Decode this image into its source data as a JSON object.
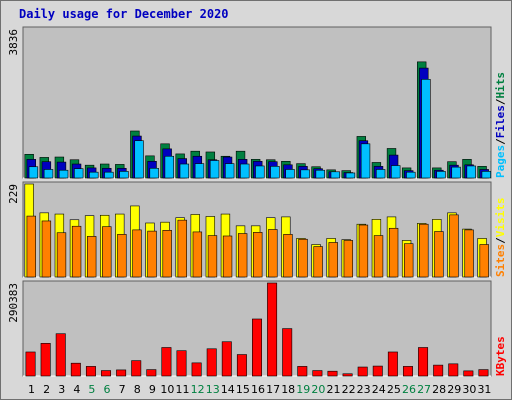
{
  "chart_data": {
    "type": "bar",
    "title": "Daily usage for December 2020",
    "categories": [
      "1",
      "2",
      "3",
      "4",
      "5",
      "6",
      "7",
      "8",
      "9",
      "10",
      "11",
      "12",
      "13",
      "14",
      "15",
      "16",
      "17",
      "18",
      "19",
      "20",
      "21",
      "22",
      "23",
      "24",
      "25",
      "26",
      "27",
      "28",
      "29",
      "30",
      "31"
    ],
    "weekend_days": [
      "5",
      "6",
      "12",
      "13",
      "19",
      "20",
      "26",
      "27"
    ],
    "panels": [
      {
        "id": "hits",
        "ymax": 3836,
        "ymax_label": "3836",
        "series": [
          {
            "name": "Hits",
            "color": "#008040",
            "values": [
              610,
              530,
              540,
              470,
              330,
              360,
              350,
              1210,
              570,
              880,
              620,
              690,
              670,
              560,
              690,
              480,
              470,
              430,
              370,
              290,
              210,
              190,
              1070,
              400,
              760,
              260,
              2990,
              260,
              420,
              480,
              300
            ]
          },
          {
            "name": "Files",
            "color": "#0000c0",
            "values": [
              480,
              420,
              410,
              360,
              260,
              250,
              250,
              1080,
              430,
              750,
              500,
              560,
              470,
              540,
              480,
              430,
              420,
              340,
              300,
              240,
              160,
              140,
              960,
              300,
              590,
              190,
              2830,
              200,
              330,
              340,
              220
            ]
          },
          {
            "name": "Pages",
            "color": "#00c0ff",
            "values": [
              290,
              220,
              200,
              240,
              150,
              150,
              170,
              960,
              250,
              560,
              360,
              370,
              450,
              370,
              360,
              310,
              300,
              220,
              210,
              200,
              160,
              130,
              880,
              220,
              320,
              150,
              2540,
              170,
              280,
              310,
              170
            ]
          }
        ],
        "axis_labels": [
          {
            "text": "Pages",
            "color": "#00c0ff"
          },
          {
            "text": "/",
            "color": "#000000"
          },
          {
            "text": "Files",
            "color": "#0000c0"
          },
          {
            "text": "/",
            "color": "#000000"
          },
          {
            "text": "Hits",
            "color": "#008040"
          }
        ]
      },
      {
        "id": "visits",
        "ymax": 229,
        "ymax_label": "229",
        "series": [
          {
            "name": "Visits",
            "color": "#ffff00",
            "values": [
              229,
              158,
              155,
              141,
              151,
              152,
              155,
              175,
              133,
              135,
              146,
              154,
              149,
              155,
              126,
              126,
              146,
              148,
              95,
              80,
              95,
              92,
              130,
              142,
              148,
              90,
              132,
              142,
              158,
              118,
              95
            ]
          },
          {
            "name": "Sites",
            "color": "#ff8000",
            "values": [
              150,
              138,
              109,
              125,
              100,
              124,
              105,
              116,
              113,
              115,
              140,
              111,
              102,
              101,
              107,
              110,
              117,
              105,
              93,
              75,
              85,
              90,
              128,
              102,
              120,
              82,
              130,
              112,
              153,
              116,
              80
            ]
          }
        ],
        "axis_labels": [
          {
            "text": "Sites",
            "color": "#ff8000"
          },
          {
            "text": "/",
            "color": "#000000"
          },
          {
            "text": "Visits",
            "color": "#ffff00"
          }
        ]
      },
      {
        "id": "kbytes",
        "ymax": 290383,
        "ymax_label": "290383",
        "series": [
          {
            "name": "KBytes",
            "color": "#ff0000",
            "values": [
              75000,
              102000,
              132000,
              40000,
              30000,
              17000,
              19000,
              48000,
              20000,
              89000,
              79000,
              41000,
              85000,
              107000,
              67000,
              178000,
              290383,
              148000,
              30000,
              17000,
              15000,
              7000,
              28000,
              31000,
              75000,
              30000,
              89000,
              34000,
              38000,
              16000,
              20000
            ]
          }
        ],
        "axis_labels": [
          {
            "text": "KBytes",
            "color": "#ff0000"
          }
        ]
      }
    ]
  }
}
